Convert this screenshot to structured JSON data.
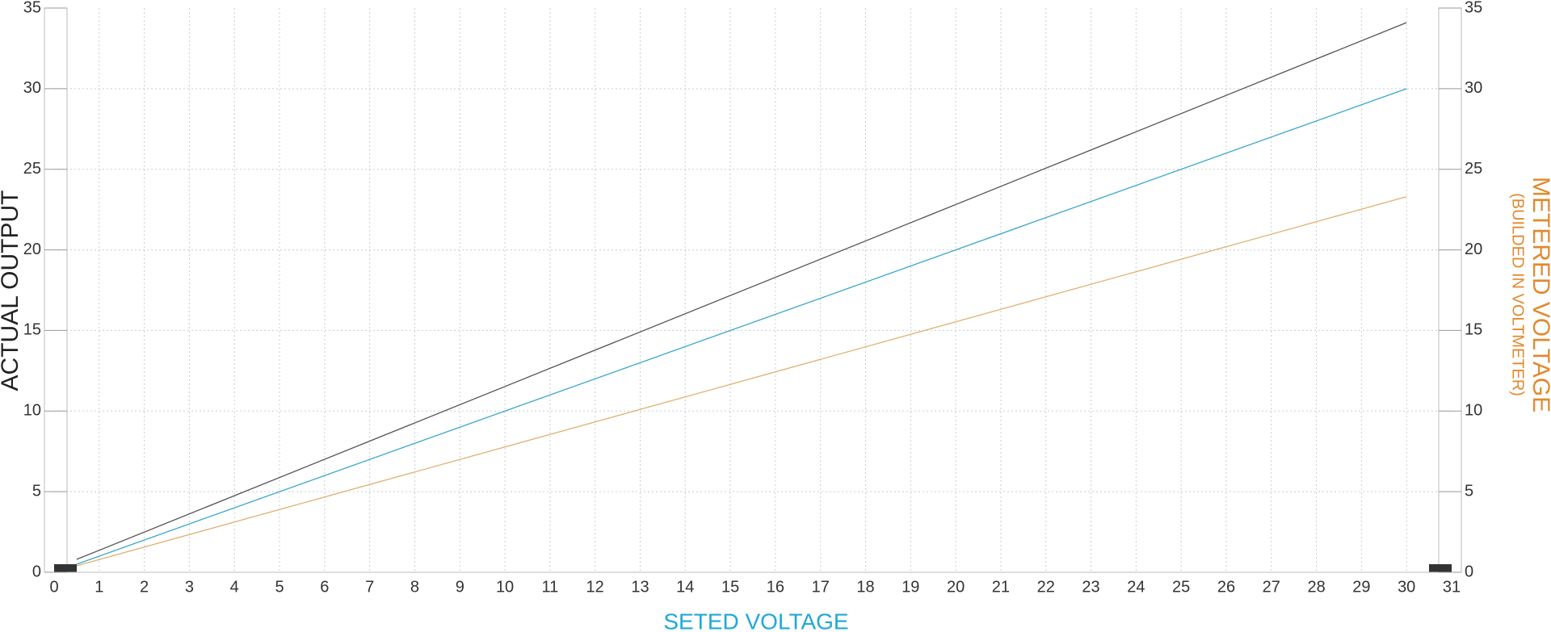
{
  "chart_data": {
    "type": "line",
    "x_label": "SETED VOLTAGE",
    "y_label": "ACTUAL OUTPUT",
    "y2_label": "METERED VOLTAGE",
    "y2_sublabel": "(BUILDED IN VOLTMETER)",
    "x": [
      0.5,
      30
    ],
    "series": [
      {
        "color": "#555555",
        "values": [
          0.8,
          34.1
        ]
      },
      {
        "color": "#3aa6d0",
        "values": [
          0.5,
          30
        ]
      },
      {
        "color": "#e0b070",
        "values": [
          0.4,
          23.3
        ],
        "axis": "y2"
      }
    ],
    "xlim": [
      0,
      31
    ],
    "xticks": [
      0,
      1,
      2,
      3,
      4,
      5,
      6,
      7,
      8,
      9,
      10,
      11,
      12,
      13,
      14,
      15,
      16,
      17,
      18,
      19,
      20,
      21,
      22,
      23,
      24,
      25,
      26,
      27,
      28,
      29,
      30,
      31
    ],
    "ylim": [
      0,
      35
    ],
    "yticks": [
      0,
      5,
      10,
      15,
      20,
      25,
      30,
      35
    ],
    "y2lim": [
      0,
      35
    ],
    "y2ticks": [
      0,
      5,
      10,
      15,
      20,
      25,
      30,
      35
    ],
    "grid": true,
    "label_colors": {
      "x": "#1fa8d8",
      "y": "#222222",
      "y2": "#e08a30"
    }
  }
}
